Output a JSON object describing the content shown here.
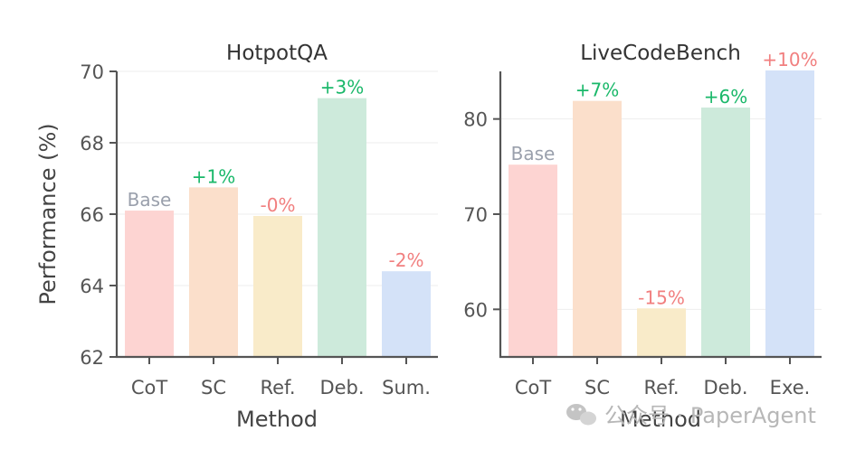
{
  "chart_data": [
    {
      "type": "bar",
      "title": "HotpotQA",
      "xlabel": "Method",
      "ylabel": "Performance (%)",
      "ylim": [
        62,
        70
      ],
      "yticks": [
        62,
        64,
        66,
        68,
        70
      ],
      "categories": [
        "CoT",
        "SC",
        "Ref.",
        "Deb.",
        "Sum."
      ],
      "values": [
        66.1,
        66.75,
        65.95,
        69.25,
        64.4
      ],
      "labels": [
        "Base",
        "+1%",
        "-0%",
        "+3%",
        "-2%"
      ],
      "colors": [
        "#fdd4d2",
        "#fbdfcb",
        "#f9ebc9",
        "#cdeadb",
        "#d4e2f8"
      ],
      "label_colors": [
        "#9aa0ac",
        "#1ab86a",
        "#f17f7f",
        "#1ab86a",
        "#f17f7f"
      ]
    },
    {
      "type": "bar",
      "title": "LiveCodeBench",
      "xlabel": "Method",
      "ylabel": "",
      "ylim": [
        55,
        85
      ],
      "yticks": [
        60,
        70,
        80
      ],
      "categories": [
        "CoT",
        "SC",
        "Ref.",
        "Deb.",
        "Exe."
      ],
      "values": [
        75.2,
        81.9,
        60.1,
        81.2,
        85.1
      ],
      "labels": [
        "Base",
        "+7%",
        "-15%",
        "+6%",
        "+10%"
      ],
      "colors": [
        "#fdd4d2",
        "#fbdfcb",
        "#f9ebc9",
        "#cdeadb",
        "#d4e2f8"
      ],
      "label_colors": [
        "#9aa0ac",
        "#1ab86a",
        "#f17f7f",
        "#1ab86a",
        "#f17f7f"
      ]
    }
  ],
  "watermark": {
    "icon": "wechat-icon",
    "text": "公众号 · PaperAgent"
  }
}
